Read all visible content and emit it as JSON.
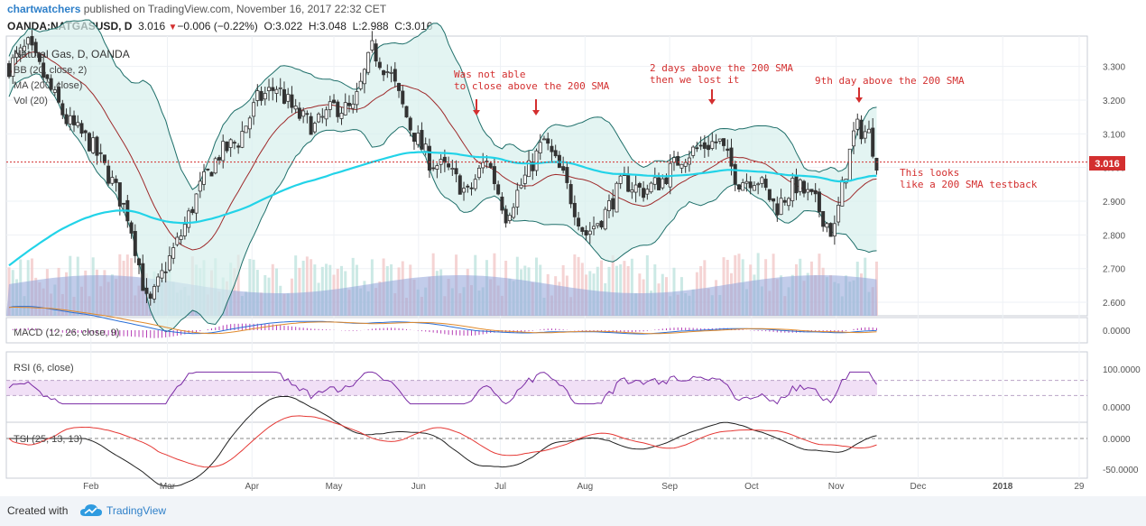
{
  "header": {
    "author": "chartwatchers",
    "published": " published on TradingView.com, November 16, 2017 22:32 CET",
    "symbol": "OANDA:NATGASUSD, D",
    "last": "3.016",
    "change": "−0.006 (−0.22%)",
    "o_label": "O:",
    "o": "3.022",
    "h_label": "H:",
    "h": "3.048",
    "l_label": "L:",
    "l": "2.988",
    "c_label": "C:",
    "c": "3.016"
  },
  "legend": {
    "title": "Natural Gas, D, OANDA",
    "bb": "BB (20, close, 2)",
    "ma": "MA (200, close)",
    "vol": "Vol (20)"
  },
  "annotations": [
    {
      "lines": [
        "Was not able",
        "to close above the 200 SMA"
      ]
    },
    {
      "lines": [
        "2 days above the 200 SMA",
        "then we lost it"
      ]
    },
    {
      "lines": [
        "9th day above the 200 SMA"
      ]
    },
    {
      "lines": [
        "This looks",
        "like a 200 SMA testback"
      ]
    }
  ],
  "footer": {
    "created": "Created with",
    "brand": "TradingView"
  },
  "colors": {
    "up": "#26a69a",
    "down": "#ef5350",
    "candle": "#333333",
    "bb_line": "#1f6f6a",
    "bb_fill": "#d7efec",
    "bb_mid": "#9e2a2b",
    "ma200": "#22d3e8",
    "volume": "#8fa3d8",
    "macd": "#2a6fd6",
    "signal": "#e08a2c",
    "hist": "#b63fb6",
    "rsi": "#7b2ca5",
    "rsi_band": "#f1e0f6",
    "tsi": "#222222",
    "tsi_signal": "#e53935",
    "price_line": "#d32f2f",
    "arrow": "#d32f2f"
  },
  "chart_data": [
    {
      "type": "candlestick",
      "title": "Natural Gas, D, OANDA",
      "y_axis_side": "right",
      "ylim": [
        2.56,
        3.39
      ],
      "y_ticks": [
        "3.300",
        "3.200",
        "3.100",
        "3.000",
        "2.900",
        "2.800",
        "2.700",
        "2.600"
      ],
      "last_price_label": "3.016",
      "x_ticks": [
        "Feb",
        "Mar",
        "Apr",
        "May",
        "Jun",
        "Jul",
        "Aug",
        "Sep",
        "Oct",
        "Nov",
        "Dec",
        "2018",
        "29"
      ],
      "x_tick_dates": [
        "2017-02-01",
        "2017-03-01",
        "2017-04-01",
        "2017-05-01",
        "2017-06-01",
        "2017-07-01",
        "2017-08-01",
        "2017-09-01",
        "2017-10-01",
        "2017-11-01",
        "2017-12-01",
        "2018-01-01",
        "2018-01-29"
      ],
      "price_path": [
        {
          "date": "2017-01-02",
          "close": 3.3
        },
        {
          "date": "2017-01-09",
          "close": 3.36
        },
        {
          "date": "2017-01-16",
          "close": 3.25
        },
        {
          "date": "2017-01-23",
          "close": 3.14
        },
        {
          "date": "2017-02-01",
          "close": 3.07
        },
        {
          "date": "2017-02-08",
          "close": 2.97
        },
        {
          "date": "2017-02-15",
          "close": 2.85
        },
        {
          "date": "2017-02-22",
          "close": 2.58
        },
        {
          "date": "2017-02-28",
          "close": 2.7
        },
        {
          "date": "2017-03-06",
          "close": 2.8
        },
        {
          "date": "2017-03-13",
          "close": 2.94
        },
        {
          "date": "2017-03-20",
          "close": 3.04
        },
        {
          "date": "2017-03-27",
          "close": 3.08
        },
        {
          "date": "2017-04-03",
          "close": 3.2
        },
        {
          "date": "2017-04-10",
          "close": 3.24
        },
        {
          "date": "2017-04-17",
          "close": 3.16
        },
        {
          "date": "2017-04-24",
          "close": 3.12
        },
        {
          "date": "2017-05-01",
          "close": 3.18
        },
        {
          "date": "2017-05-08",
          "close": 3.17
        },
        {
          "date": "2017-05-15",
          "close": 3.35
        },
        {
          "date": "2017-05-22",
          "close": 3.27
        },
        {
          "date": "2017-05-29",
          "close": 3.12
        },
        {
          "date": "2017-06-05",
          "close": 3.02
        },
        {
          "date": "2017-06-12",
          "close": 2.99
        },
        {
          "date": "2017-06-19",
          "close": 2.92
        },
        {
          "date": "2017-06-26",
          "close": 3.03
        },
        {
          "date": "2017-07-03",
          "close": 2.86
        },
        {
          "date": "2017-07-10",
          "close": 2.97
        },
        {
          "date": "2017-07-17",
          "close": 3.08
        },
        {
          "date": "2017-07-24",
          "close": 2.97
        },
        {
          "date": "2017-08-01",
          "close": 2.8
        },
        {
          "date": "2017-08-08",
          "close": 2.86
        },
        {
          "date": "2017-08-15",
          "close": 2.96
        },
        {
          "date": "2017-08-22",
          "close": 2.93
        },
        {
          "date": "2017-08-29",
          "close": 2.96
        },
        {
          "date": "2017-09-05",
          "close": 3.03
        },
        {
          "date": "2017-09-12",
          "close": 3.06
        },
        {
          "date": "2017-09-19",
          "close": 3.08
        },
        {
          "date": "2017-09-26",
          "close": 2.96
        },
        {
          "date": "2017-10-03",
          "close": 2.97
        },
        {
          "date": "2017-10-10",
          "close": 2.88
        },
        {
          "date": "2017-10-17",
          "close": 2.95
        },
        {
          "date": "2017-10-24",
          "close": 2.9
        },
        {
          "date": "2017-10-31",
          "close": 2.8
        },
        {
          "date": "2017-11-03",
          "close": 2.93
        },
        {
          "date": "2017-11-08",
          "close": 3.12
        },
        {
          "date": "2017-11-13",
          "close": 3.1
        },
        {
          "date": "2017-11-16",
          "close": 3.016
        }
      ]
    },
    {
      "type": "line",
      "title": "MACD (12, 26, close, 9)",
      "y_ticks": [
        "0.0000"
      ]
    },
    {
      "type": "line",
      "title": "RSI (6, close)",
      "y_ticks": [
        "100.0000",
        "0.0000"
      ]
    },
    {
      "type": "line",
      "title": "TSI (25, 13, 13)",
      "y_ticks": [
        "0.0000",
        "-50.0000"
      ]
    }
  ]
}
